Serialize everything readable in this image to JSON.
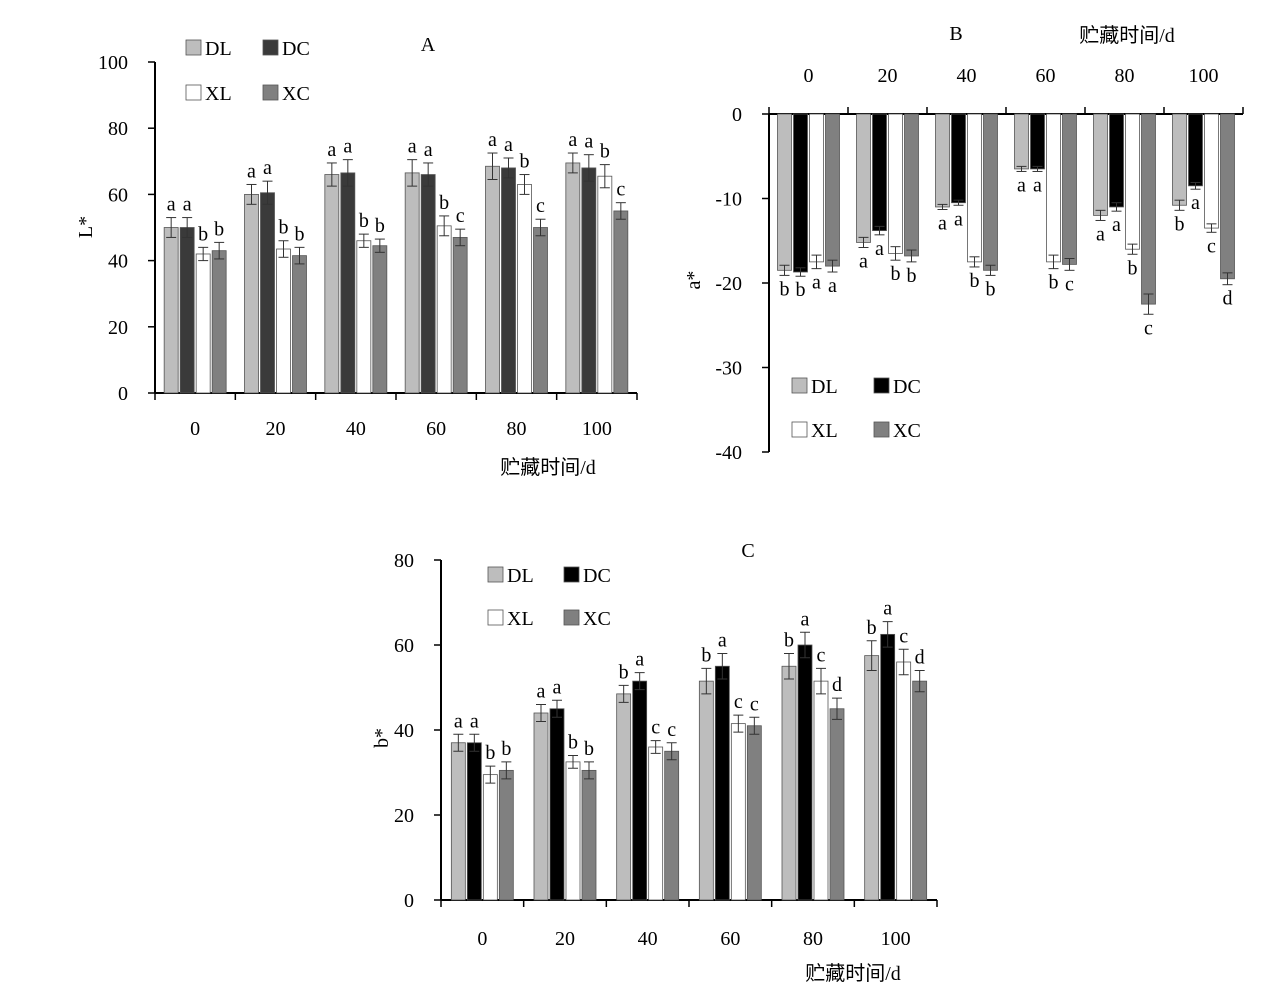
{
  "colors": {
    "DL": "#bdbdbd",
    "DC": "#3a3a3a",
    "DC_dark": "#000000",
    "XL": "#ffffff",
    "XC": "#808080",
    "axis": "#000000"
  },
  "chart_data": [
    {
      "id": "A",
      "type": "bar",
      "title": "A",
      "xlabel": "贮藏时间/d",
      "ylabel": "L*",
      "categories": [
        "0",
        "20",
        "40",
        "60",
        "80",
        "100"
      ],
      "yticks": [
        "0",
        "20",
        "40",
        "60",
        "80",
        "100"
      ],
      "ylim": [
        0,
        100
      ],
      "legend_position": "top-left",
      "series": [
        {
          "name": "DL",
          "values": [
            50,
            60,
            66,
            66.5,
            68.5,
            69.5
          ],
          "errors": [
            3,
            3,
            3.5,
            4,
            4,
            3
          ],
          "letters": [
            "a",
            "a",
            "a",
            "a",
            "a",
            "a"
          ]
        },
        {
          "name": "DC",
          "values": [
            50,
            60.5,
            66.5,
            66,
            68,
            68
          ],
          "errors": [
            3,
            3.5,
            4,
            3.5,
            3,
            4
          ],
          "letters": [
            "a",
            "a",
            "a",
            "a",
            "a",
            "a"
          ]
        },
        {
          "name": "XL",
          "values": [
            42,
            43.5,
            46,
            50.5,
            63,
            65.5
          ],
          "errors": [
            2,
            2.5,
            2,
            3,
            3,
            3.5
          ],
          "letters": [
            "b",
            "b",
            "b",
            "b",
            "b",
            "b"
          ]
        },
        {
          "name": "XC",
          "values": [
            43,
            41.5,
            44.5,
            47,
            50,
            55
          ],
          "errors": [
            2.5,
            2.5,
            2,
            2.5,
            2.5,
            2.5
          ],
          "letters": [
            "b",
            "b",
            "b",
            "c",
            "c",
            "c"
          ]
        }
      ]
    },
    {
      "id": "B",
      "type": "bar",
      "title": "B",
      "xlabel": "贮藏时间/d",
      "ylabel": "a*",
      "categories": [
        "0",
        "20",
        "40",
        "60",
        "80",
        "100"
      ],
      "yticks": [
        "0",
        "-10",
        "-20",
        "-30",
        "-40"
      ],
      "ylim": [
        -40,
        0
      ],
      "legend_position": "bottom-left",
      "series": [
        {
          "name": "DL",
          "values": [
            -18.5,
            -15.2,
            -11,
            -6.5,
            -12,
            -10.8
          ],
          "errors": [
            0.6,
            0.6,
            0.3,
            0.3,
            0.6,
            0.6
          ],
          "letters": [
            "b",
            "a",
            "a",
            "a",
            "a",
            "b"
          ]
        },
        {
          "name": "DC",
          "values": [
            -18.7,
            -13.8,
            -10.5,
            -6.5,
            -11,
            -8.5
          ],
          "errors": [
            0.5,
            0.5,
            0.3,
            0.3,
            0.5,
            0.4
          ],
          "letters": [
            "b",
            "a",
            "a",
            "a",
            "a",
            "a"
          ]
        },
        {
          "name": "XL",
          "values": [
            -17.5,
            -16.5,
            -17.5,
            -17.5,
            -16,
            -13.5
          ],
          "errors": [
            0.8,
            0.8,
            0.6,
            0.8,
            0.6,
            0.5
          ],
          "letters": [
            "a",
            "b",
            "b",
            "b",
            "b",
            "c"
          ]
        },
        {
          "name": "XC",
          "values": [
            -18,
            -16.8,
            -18.5,
            -17.8,
            -22.5,
            -19.5
          ],
          "errors": [
            0.7,
            0.7,
            0.6,
            0.7,
            1.2,
            0.7
          ],
          "letters": [
            "a",
            "b",
            "b",
            "c",
            "c",
            "d"
          ]
        }
      ]
    },
    {
      "id": "C",
      "type": "bar",
      "title": "C",
      "xlabel": "贮藏时间/d",
      "ylabel": "b*",
      "categories": [
        "0",
        "20",
        "40",
        "60",
        "80",
        "100"
      ],
      "yticks": [
        "0",
        "20",
        "40",
        "60",
        "80"
      ],
      "ylim": [
        0,
        80
      ],
      "legend_position": "top-left",
      "series": [
        {
          "name": "DL",
          "values": [
            37,
            44,
            48.5,
            51.5,
            55,
            57.5
          ],
          "errors": [
            2,
            2,
            2,
            3,
            3,
            3.5
          ],
          "letters": [
            "a",
            "a",
            "b",
            "b",
            "b",
            "b"
          ]
        },
        {
          "name": "DC",
          "values": [
            37,
            45,
            51.5,
            55,
            60,
            62.5
          ],
          "errors": [
            2,
            2,
            2,
            3,
            3,
            3
          ],
          "letters": [
            "a",
            "a",
            "a",
            "a",
            "a",
            "a"
          ]
        },
        {
          "name": "XL",
          "values": [
            29.5,
            32.5,
            36,
            41.5,
            51.5,
            56
          ],
          "errors": [
            2,
            1.5,
            1.5,
            2,
            3,
            3
          ],
          "letters": [
            "b",
            "b",
            "c",
            "c",
            "c",
            "c"
          ]
        },
        {
          "name": "XC",
          "values": [
            30.5,
            30.5,
            35,
            41,
            45,
            51.5
          ],
          "errors": [
            2,
            2,
            2,
            2,
            2.5,
            2.5
          ],
          "letters": [
            "b",
            "b",
            "c",
            "c",
            "d",
            "d"
          ]
        }
      ]
    }
  ]
}
